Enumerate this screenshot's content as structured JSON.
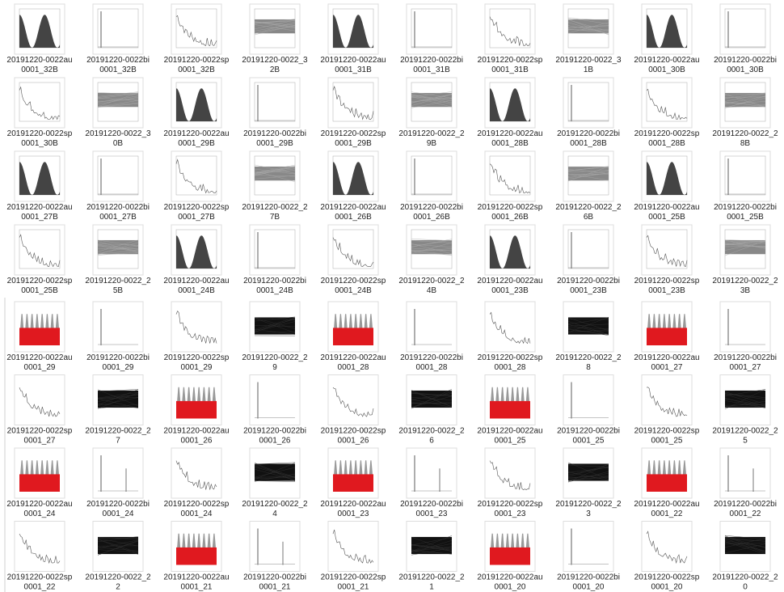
{
  "files": [
    [
      "20191220-0022au",
      "0001_32B"
    ],
    [
      "20191220-0022bi",
      "0001_32B"
    ],
    [
      "20191220-0022sp",
      "0001_32B"
    ],
    [
      "20191220-0022_3",
      "2B"
    ],
    [
      "20191220-0022au",
      "0001_31B"
    ],
    [
      "20191220-0022bi",
      "0001_31B"
    ],
    [
      "20191220-0022sp",
      "0001_31B"
    ],
    [
      "20191220-0022_3",
      "1B"
    ],
    [
      "20191220-0022au",
      "0001_30B"
    ],
    [
      "20191220-0022bi",
      "0001_30B"
    ],
    [
      "20191220-0022sp",
      "0001_30B"
    ],
    [
      "20191220-0022_3",
      "0B"
    ],
    [
      "20191220-0022au",
      "0001_29B"
    ],
    [
      "20191220-0022bi",
      "0001_29B"
    ],
    [
      "20191220-0022sp",
      "0001_29B"
    ],
    [
      "20191220-0022_2",
      "9B"
    ],
    [
      "20191220-0022au",
      "0001_28B"
    ],
    [
      "20191220-0022bi",
      "0001_28B"
    ],
    [
      "20191220-0022sp",
      "0001_28B"
    ],
    [
      "20191220-0022_2",
      "8B"
    ],
    [
      "20191220-0022au",
      "0001_27B"
    ],
    [
      "20191220-0022bi",
      "0001_27B"
    ],
    [
      "20191220-0022sp",
      "0001_27B"
    ],
    [
      "20191220-0022_2",
      "7B"
    ],
    [
      "20191220-0022au",
      "0001_26B"
    ],
    [
      "20191220-0022bi",
      "0001_26B"
    ],
    [
      "20191220-0022sp",
      "0001_26B"
    ],
    [
      "20191220-0022_2",
      "6B"
    ],
    [
      "20191220-0022au",
      "0001_25B"
    ],
    [
      "20191220-0022bi",
      "0001_25B"
    ],
    [
      "20191220-0022sp",
      "0001_25B"
    ],
    [
      "20191220-0022_2",
      "5B"
    ],
    [
      "20191220-0022au",
      "0001_24B"
    ],
    [
      "20191220-0022bi",
      "0001_24B"
    ],
    [
      "20191220-0022sp",
      "0001_24B"
    ],
    [
      "20191220-0022_2",
      "4B"
    ],
    [
      "20191220-0022au",
      "0001_23B"
    ],
    [
      "20191220-0022bi",
      "0001_23B"
    ],
    [
      "20191220-0022sp",
      "0001_23B"
    ],
    [
      "20191220-0022_2",
      "3B"
    ],
    [
      "20191220-0022au",
      "0001_29"
    ],
    [
      "20191220-0022bi",
      "0001_29"
    ],
    [
      "20191220-0022sp",
      "0001_29"
    ],
    [
      "20191220-0022_2",
      "9"
    ],
    [
      "20191220-0022au",
      "0001_28"
    ],
    [
      "20191220-0022bi",
      "0001_28"
    ],
    [
      "20191220-0022sp",
      "0001_28"
    ],
    [
      "20191220-0022_2",
      "8"
    ],
    [
      "20191220-0022au",
      "0001_27"
    ],
    [
      "20191220-0022bi",
      "0001_27"
    ],
    [
      "20191220-0022sp",
      "0001_27"
    ],
    [
      "20191220-0022_2",
      "7"
    ],
    [
      "20191220-0022au",
      "0001_26"
    ],
    [
      "20191220-0022bi",
      "0001_26"
    ],
    [
      "20191220-0022sp",
      "0001_26"
    ],
    [
      "20191220-0022_2",
      "6"
    ],
    [
      "20191220-0022au",
      "0001_25"
    ],
    [
      "20191220-0022bi",
      "0001_25"
    ],
    [
      "20191220-0022sp",
      "0001_25"
    ],
    [
      "20191220-0022_2",
      "5"
    ],
    [
      "20191220-0022au",
      "0001_24"
    ],
    [
      "20191220-0022bi",
      "0001_24"
    ],
    [
      "20191220-0022sp",
      "0001_24"
    ],
    [
      "20191220-0022_2",
      "4"
    ],
    [
      "20191220-0022au",
      "0001_23"
    ],
    [
      "20191220-0022bi",
      "0001_23"
    ],
    [
      "20191220-0022sp",
      "0001_23"
    ],
    [
      "20191220-0022_2",
      "3"
    ],
    [
      "20191220-0022au",
      "0001_22"
    ],
    [
      "20191220-0022bi",
      "0001_22"
    ],
    [
      "20191220-0022sp",
      "0001_22"
    ],
    [
      "20191220-0022_2",
      "2"
    ],
    [
      "20191220-0022au",
      "0001_21"
    ],
    [
      "20191220-0022bi",
      "0001_21"
    ],
    [
      "20191220-0022sp",
      "0001_21"
    ],
    [
      "20191220-0022_2",
      "1"
    ],
    [
      "20191220-0022au",
      "0001_20"
    ],
    [
      "20191220-0022bi",
      "0001_20"
    ],
    [
      "20191220-0022sp",
      "0001_20"
    ],
    [
      "20191220-0022_2",
      "0"
    ]
  ]
}
